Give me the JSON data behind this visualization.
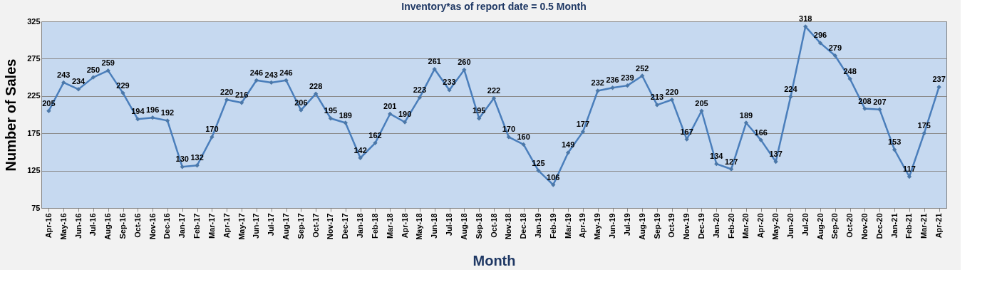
{
  "chart_data": {
    "type": "line",
    "title": "Inventory*as of report date = 0.5 Month",
    "xlabel": "Month",
    "ylabel": "Number of Sales",
    "categories": [
      "Apr-16",
      "May-16",
      "Jun-16",
      "Jul-16",
      "Aug-16",
      "Sep-16",
      "Oct-16",
      "Nov-16",
      "Dec-16",
      "Jan-17",
      "Feb-17",
      "Mar-17",
      "Apr-17",
      "May-17",
      "Jun-17",
      "Jul-17",
      "Aug-17",
      "Sep-17",
      "Oct-17",
      "Nov-17",
      "Dec-17",
      "Jan-18",
      "Feb-18",
      "Mar-18",
      "Apr-18",
      "May-18",
      "Jun-18",
      "Jul-18",
      "Aug-18",
      "Sep-18",
      "Oct-18",
      "Nov-18",
      "Dec-18",
      "Jan-19",
      "Feb-19",
      "Mar-19",
      "Apr-19",
      "May-19",
      "Jun-19",
      "Jul-19",
      "Aug-19",
      "Sep-19",
      "Oct-19",
      "Nov-19",
      "Dec-19",
      "Jan-20",
      "Feb-20",
      "Mar-20",
      "Apr-20",
      "May-20",
      "Jun-20",
      "Jul-20",
      "Aug-20",
      "Sep-20",
      "Oct-20",
      "Nov-20",
      "Dec-20",
      "Jan-21",
      "Feb-21",
      "Mar-21",
      "Apr-21"
    ],
    "series": [
      {
        "color": "#4a7ebb",
        "values": [
          205,
          243,
          234,
          250,
          259,
          229,
          194,
          196,
          192,
          130,
          132,
          170,
          220,
          216,
          246,
          243,
          246,
          206,
          228,
          195,
          189,
          142,
          162,
          201,
          190,
          223,
          261,
          233,
          260,
          195,
          222,
          170,
          160,
          125,
          106,
          149,
          177,
          232,
          236,
          239,
          252,
          213,
          220,
          167,
          205,
          134,
          127,
          189,
          166,
          137,
          224,
          318,
          296,
          279,
          248,
          208,
          207,
          153,
          117,
          175,
          237
        ]
      }
    ],
    "ylim": [
      75,
      325
    ],
    "yticks": [
      75,
      125,
      175,
      225,
      275,
      325
    ],
    "grid": "y",
    "marker": "diamond",
    "line_style": "solid",
    "data_labels": true
  }
}
